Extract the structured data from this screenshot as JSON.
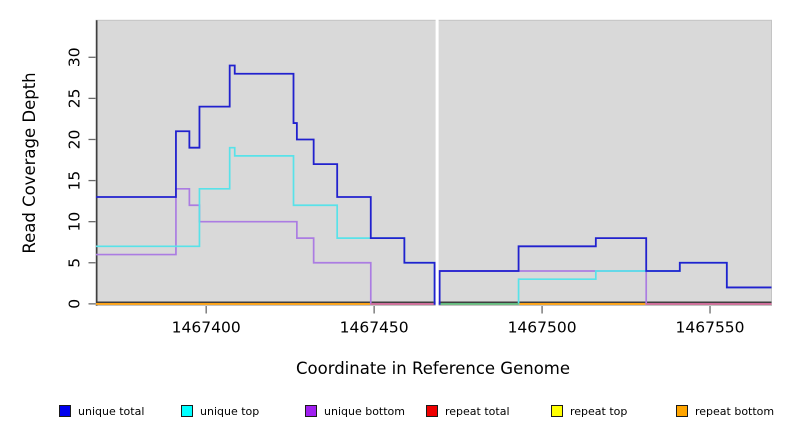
{
  "figure": {
    "xlabel": "Coordinate in Reference Genome",
    "ylabel": "Read Coverage Depth"
  },
  "chart_data": {
    "type": "line",
    "subtype": "step-post",
    "title": "",
    "xlabel": "Coordinate in Reference Genome",
    "ylabel": "Read Coverage Depth",
    "xlim": [
      1467367.2,
      1467568.3
    ],
    "ylim": [
      -0.2,
      34.5
    ],
    "x_ticks": [
      1467400,
      1467450,
      1467500,
      1467550
    ],
    "y_ticks": [
      0,
      5,
      10,
      15,
      20,
      25,
      30
    ],
    "plot_background": "#d9d9d9",
    "plot_border_color": "#c4c4c4",
    "axis_line_color": "#3f3f3f",
    "tick_color": "#6a6a6a",
    "grid": false,
    "legend_position": "bottom",
    "gap_region": {
      "x_start": 1467468.3,
      "x_end": 1467469.2,
      "color": "#ffffff"
    },
    "draw_order": [
      "repeat total",
      "repeat top",
      "repeat bottom",
      "unique bottom",
      "unique top",
      "unique total"
    ],
    "series": [
      {
        "name": "unique total",
        "line_color": "#2121ce",
        "legend_color": "#0000ee",
        "points": [
          [
            1467367.2,
            13
          ],
          [
            1467391,
            21
          ],
          [
            1467395,
            19
          ],
          [
            1467398,
            24
          ],
          [
            1467407,
            29
          ],
          [
            1467408.5,
            28
          ],
          [
            1467426,
            22
          ],
          [
            1467427,
            20
          ],
          [
            1467432,
            17
          ],
          [
            1467439,
            13
          ],
          [
            1467449,
            8
          ],
          [
            1467459,
            5
          ],
          [
            1467468,
            0
          ],
          [
            1467469.5,
            4
          ],
          [
            1467493,
            7
          ],
          [
            1467516,
            8
          ],
          [
            1467531,
            4
          ],
          [
            1467541,
            5
          ],
          [
            1467555,
            2
          ],
          [
            1467568.3,
            2
          ]
        ]
      },
      {
        "name": "unique top",
        "line_color": "#58e2e9",
        "legend_color": "#00ffff",
        "points": [
          [
            1467367.2,
            7
          ],
          [
            1467398,
            14
          ],
          [
            1467407,
            19
          ],
          [
            1467408.5,
            18
          ],
          [
            1467426,
            12
          ],
          [
            1467439,
            8
          ],
          [
            1467459,
            5
          ],
          [
            1467468,
            0
          ],
          [
            1467493,
            3
          ],
          [
            1467516,
            4
          ],
          [
            1467541,
            5
          ],
          [
            1467555,
            2
          ],
          [
            1467568.3,
            2
          ]
        ]
      },
      {
        "name": "unique bottom",
        "line_color": "#ab7ce2",
        "legend_color": "#a020f0",
        "points": [
          [
            1467367.2,
            6
          ],
          [
            1467391,
            14
          ],
          [
            1467395,
            12
          ],
          [
            1467398,
            10
          ],
          [
            1467427,
            8
          ],
          [
            1467432,
            5
          ],
          [
            1467449,
            0
          ],
          [
            1467469.5,
            4
          ],
          [
            1467531,
            0
          ],
          [
            1467568.3,
            0
          ]
        ]
      },
      {
        "name": "repeat total",
        "line_color": "#e02020",
        "legend_color": "#ee0000",
        "points": [
          [
            1467367.2,
            0
          ],
          [
            1467568.3,
            0
          ]
        ]
      },
      {
        "name": "repeat top",
        "line_color": "#f0f030",
        "legend_color": "#ffff00",
        "points": [
          [
            1467367.2,
            0
          ],
          [
            1467568.3,
            0
          ]
        ]
      },
      {
        "name": "repeat bottom",
        "line_color": "#ffa317",
        "legend_color": "#ffa500",
        "points": [
          [
            1467367.2,
            0
          ],
          [
            1467568.3,
            0
          ]
        ]
      }
    ],
    "overlap_segments": [
      {
        "x_start": 1467449,
        "x_end": 1467468,
        "y": 0,
        "color": "#cf6d9d",
        "note": "unique bottom over repeat bottom"
      },
      {
        "x_start": 1467469.5,
        "x_end": 1467493,
        "y": 0,
        "color": "#63bb80",
        "note": "unique top over repeat bottom"
      },
      {
        "x_start": 1467531,
        "x_end": 1467568.3,
        "y": 0,
        "color": "#cf6d9d",
        "note": "unique bottom over repeat bottom"
      }
    ]
  },
  "legend": {
    "items": [
      {
        "label": "unique total",
        "color": "#0000ee"
      },
      {
        "label": "unique top",
        "color": "#00ffff"
      },
      {
        "label": "unique bottom",
        "color": "#a020f0"
      },
      {
        "label": "repeat total",
        "color": "#ee0000"
      },
      {
        "label": "repeat top",
        "color": "#ffff00"
      },
      {
        "label": "repeat bottom",
        "color": "#ffa500"
      }
    ]
  }
}
